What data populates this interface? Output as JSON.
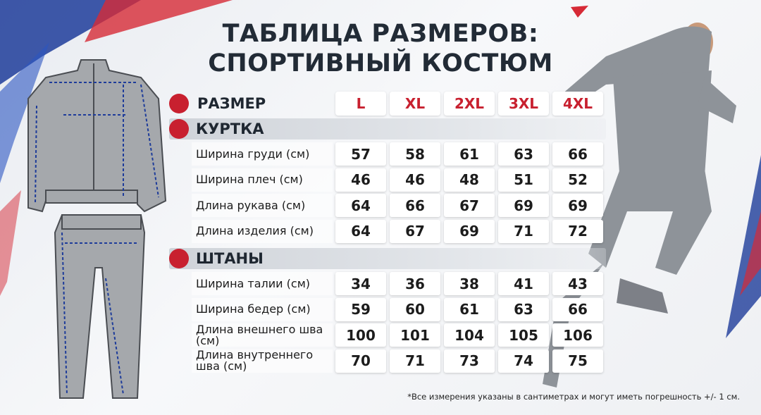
{
  "title": [
    "ТАБЛИЦА РАЗМЕРОВ:",
    "СПОРТИВНЫЙ КОСТЮМ"
  ],
  "table": {
    "header": "РАЗМЕР",
    "sizes": [
      "L",
      "XL",
      "2XL",
      "3XL",
      "4XL"
    ],
    "sections": [
      {
        "title": "КУРТКА",
        "rows": [
          {
            "label": "Ширина груди (см)",
            "values": [
              57,
              58,
              61,
              63,
              66
            ]
          },
          {
            "label": "Ширина плеч (см)",
            "values": [
              46,
              46,
              48,
              51,
              52
            ]
          },
          {
            "label": "Длина рукава (см)",
            "values": [
              64,
              66,
              67,
              69,
              69
            ]
          },
          {
            "label": "Длина изделия (см)",
            "values": [
              64,
              67,
              69,
              71,
              72
            ]
          }
        ]
      },
      {
        "title": "ШТАНЫ",
        "rows": [
          {
            "label": "Ширина талии (см)",
            "values": [
              34,
              36,
              38,
              41,
              43
            ]
          },
          {
            "label": "Ширина бедер (см)",
            "values": [
              59,
              60,
              61,
              63,
              66
            ]
          },
          {
            "label": "Длина внешнего шва (см)",
            "values": [
              100,
              101,
              104,
              105,
              106
            ]
          },
          {
            "label": "Длина внутреннего шва (см)",
            "values": [
              70,
              71,
              73,
              74,
              75
            ]
          }
        ]
      }
    ]
  },
  "footnote": "*Все измерения указаны в сантиметрах и могут иметь погрешность +/- 1 см."
}
